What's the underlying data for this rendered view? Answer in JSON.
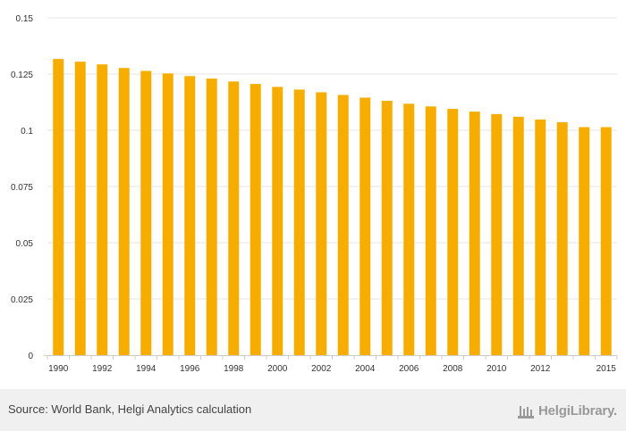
{
  "chart_data": {
    "type": "bar",
    "categories": [
      "1990",
      "1991",
      "1992",
      "1993",
      "1994",
      "1995",
      "1996",
      "1997",
      "1998",
      "1999",
      "2000",
      "2001",
      "2002",
      "2003",
      "2004",
      "2005",
      "2006",
      "2007",
      "2008",
      "2009",
      "2010",
      "2011",
      "2012",
      "2013",
      "2014",
      "2015"
    ],
    "values": [
      0.1317,
      0.1305,
      0.1293,
      0.1277,
      0.1264,
      0.1253,
      0.1241,
      0.123,
      0.1217,
      0.1206,
      0.1193,
      0.1181,
      0.1169,
      0.1157,
      0.1145,
      0.1131,
      0.1118,
      0.1106,
      0.1095,
      0.1083,
      0.1072,
      0.106,
      0.1048,
      0.1036,
      0.1014,
      0.1014
    ],
    "x_tick_labels": [
      "1990",
      "1992",
      "1994",
      "1996",
      "1998",
      "2000",
      "2002",
      "2004",
      "2006",
      "2008",
      "2010",
      "2012",
      "2015"
    ],
    "y_tick_labels": [
      "0",
      "0.025",
      "0.05",
      "0.075",
      "0.1",
      "0.125",
      "0.15"
    ],
    "ylim": [
      0,
      0.15
    ],
    "grid": true,
    "bar_color": "#f7ad00",
    "title": "",
    "xlabel": "",
    "ylabel": ""
  },
  "footer": {
    "source": "Source: World Bank, Helgi Analytics calculation",
    "brand": "HelgiLibrary."
  },
  "colors": {
    "grid": "#e6e6e6",
    "axis": "#cccccc",
    "footer_bg": "#f0f0f0",
    "brand": "#999999"
  }
}
